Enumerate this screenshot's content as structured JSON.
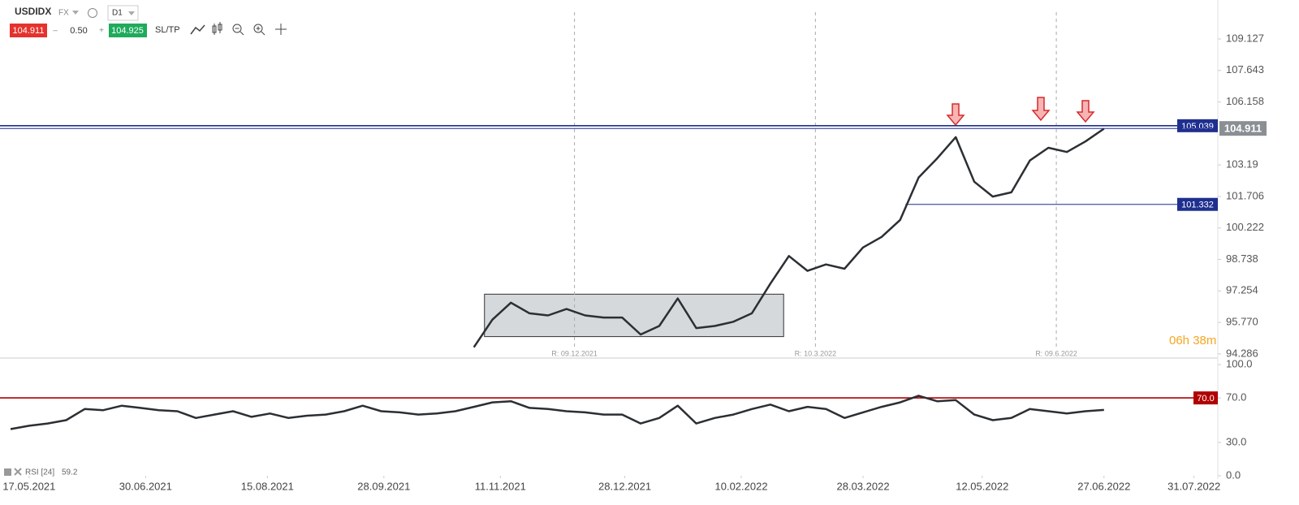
{
  "toolbar": {
    "market": "FX",
    "timeframe": "D1",
    "bid": 104.911,
    "volume": "0.50",
    "ask": 104.925,
    "sltp": "SL/TP",
    "countdown": "06h 38m"
  },
  "chart_data": [
    {
      "type": "line",
      "x": [
        "2021-11-01",
        "2021-11-08",
        "2021-11-15",
        "2021-11-22",
        "2021-11-29",
        "2021-12-06",
        "2021-12-13",
        "2021-12-20",
        "2021-12-27",
        "2022-01-03",
        "2022-01-10",
        "2022-01-17",
        "2022-01-24",
        "2022-01-31",
        "2022-02-07",
        "2022-02-14",
        "2022-02-21",
        "2022-02-28",
        "2022-03-07",
        "2022-03-14",
        "2022-03-21",
        "2022-03-28",
        "2022-04-04",
        "2022-04-11",
        "2022-04-18",
        "2022-04-25",
        "2022-05-02",
        "2022-05-09",
        "2022-05-16",
        "2022-05-23",
        "2022-05-30",
        "2022-06-06",
        "2022-06-13",
        "2022-06-20",
        "2022-06-27"
      ],
      "series": [
        {
          "name": "USDIDX",
          "color": "#2b2f33",
          "values": [
            94.6,
            95.9,
            96.7,
            96.2,
            96.1,
            96.4,
            96.1,
            96.0,
            96.0,
            95.2,
            95.6,
            96.9,
            95.5,
            95.6,
            95.8,
            96.2,
            97.6,
            98.9,
            98.2,
            98.5,
            98.3,
            99.3,
            99.8,
            100.6,
            102.6,
            103.5,
            104.5,
            102.4,
            101.7,
            101.9,
            103.4,
            104.0,
            103.8,
            104.3,
            104.9
          ]
        }
      ],
      "xlim": [
        "2021-05-06",
        "2022-08-09"
      ],
      "ylim": [
        94.09,
        110.39
      ],
      "yticks": [
        109.127,
        107.643,
        106.158,
        103.19,
        101.706,
        100.222,
        98.738,
        97.254,
        {
          "value": 95.77,
          "label": "95.770"
        },
        94.286
      ],
      "hlines": [
        {
          "value": 105.039,
          "color": "#1f2f8f"
        },
        {
          "value": 101.332,
          "color": "#1f2f8f",
          "from": "2022-04-13"
        }
      ],
      "zone": {
        "x": [
          "2021-11-05",
          "2022-02-26"
        ],
        "y": [
          95.1,
          97.1
        ],
        "color": "#d5d9dc"
      },
      "markers": [
        {
          "x": "2021-12-09",
          "label": "R: 09.12.2021"
        },
        {
          "x": "2022-03-10",
          "label": "R: 10.3.2022"
        },
        {
          "x": "2022-06-09",
          "label": "R: 09.6.2022"
        }
      ]
    },
    {
      "type": "line",
      "x": [
        "2021-05-10",
        "2021-05-17",
        "2021-05-24",
        "2021-05-31",
        "2021-06-07",
        "2021-06-14",
        "2021-06-21",
        "2021-06-28",
        "2021-07-05",
        "2021-07-12",
        "2021-07-19",
        "2021-07-26",
        "2021-08-02",
        "2021-08-09",
        "2021-08-16",
        "2021-08-23",
        "2021-08-30",
        "2021-09-06",
        "2021-09-13",
        "2021-09-20",
        "2021-09-27",
        "2021-10-04",
        "2021-10-11",
        "2021-10-18",
        "2021-10-25",
        "2021-11-01",
        "2021-11-08",
        "2021-11-15",
        "2021-11-22",
        "2021-11-29",
        "2021-12-06",
        "2021-12-13",
        "2021-12-20",
        "2021-12-27",
        "2022-01-03",
        "2022-01-10",
        "2022-01-17",
        "2022-01-24",
        "2022-01-31",
        "2022-02-07",
        "2022-02-14",
        "2022-02-21",
        "2022-02-28",
        "2022-03-07",
        "2022-03-14",
        "2022-03-21",
        "2022-03-28",
        "2022-04-04",
        "2022-04-11",
        "2022-04-18",
        "2022-04-25",
        "2022-05-02",
        "2022-05-09",
        "2022-05-16",
        "2022-05-23",
        "2022-05-30",
        "2022-06-06",
        "2022-06-13",
        "2022-06-20",
        "2022-06-27"
      ],
      "series": [
        {
          "name": "RSI [24]",
          "color": "#2b2f33",
          "values": [
            42,
            45,
            47,
            50,
            60,
            59,
            63,
            61,
            59,
            58,
            52,
            55,
            58,
            53,
            56,
            52,
            54,
            55,
            58,
            63,
            58,
            57,
            55,
            56,
            58,
            62,
            66,
            67,
            61,
            60,
            58,
            57,
            55,
            55,
            47,
            52,
            63,
            47,
            52,
            55,
            60,
            64,
            58,
            62,
            60,
            52,
            57,
            62,
            66,
            72,
            67,
            68,
            55,
            50,
            52,
            60,
            58,
            56,
            58,
            59.2
          ]
        }
      ],
      "xlim": [
        "2021-05-06",
        "2022-08-09"
      ],
      "ylim": [
        0,
        100
      ],
      "yticks": [
        {
          "value": 100,
          "label": "100.0"
        },
        {
          "value": 70,
          "label": "70.0"
        },
        {
          "value": 30,
          "label": "30.0"
        },
        {
          "value": 0,
          "label": "0.0"
        }
      ],
      "hlines": [
        {
          "value": 70,
          "label": "70.0",
          "color": "#b00000"
        }
      ],
      "xticks": [
        {
          "value": "2021-05-17",
          "label": "17.05.2021"
        },
        {
          "value": "2021-06-30",
          "label": "30.06.2021"
        },
        {
          "value": "2021-08-15",
          "label": "15.08.2021"
        },
        {
          "value": "2021-09-28",
          "label": "28.09.2021"
        },
        {
          "value": "2021-11-11",
          "label": "11.11.2021"
        },
        {
          "value": "2021-12-28",
          "label": "28.12.2021"
        },
        {
          "value": "2022-02-10",
          "label": "10.02.2022"
        },
        {
          "value": "2022-03-28",
          "label": "28.03.2022"
        },
        {
          "value": "2022-05-12",
          "label": "12.05.2022"
        },
        {
          "value": "2022-06-27",
          "label": "27.06.2022"
        },
        {
          "value": "2022-07-31",
          "label": "31.07.2022"
        }
      ]
    }
  ]
}
